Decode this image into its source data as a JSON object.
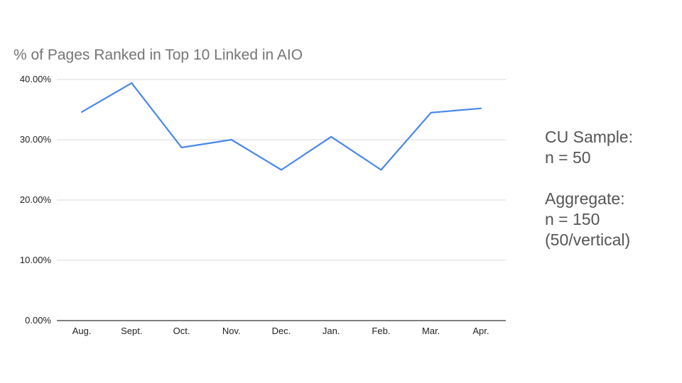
{
  "chart_data": {
    "type": "line",
    "title": "% of Pages Ranked in Top 10 Linked in AIO",
    "xlabel": "",
    "ylabel": "",
    "categories": [
      "Aug.",
      "Sept.",
      "Oct.",
      "Nov.",
      "Dec.",
      "Jan.",
      "Feb.",
      "Mar.",
      "Apr."
    ],
    "series": [
      {
        "values": [
          34.6,
          39.4,
          28.7,
          30.0,
          25.0,
          30.5,
          25.0,
          34.5,
          35.2
        ]
      }
    ],
    "ylim": [
      0,
      40
    ],
    "yticks": [
      0,
      10,
      20,
      30,
      40
    ],
    "ytick_labels": [
      "0.00%",
      "10.00%",
      "20.00%",
      "30.00%",
      "40.00%"
    ],
    "grid": true,
    "legend": "none",
    "line_color": "#4a86e8"
  },
  "side_note": {
    "cu_label": "CU Sample:",
    "cu_n": "n = 50",
    "agg_label": "Aggregate:",
    "agg_n": "n = 150",
    "agg_detail": "(50/vertical)"
  }
}
